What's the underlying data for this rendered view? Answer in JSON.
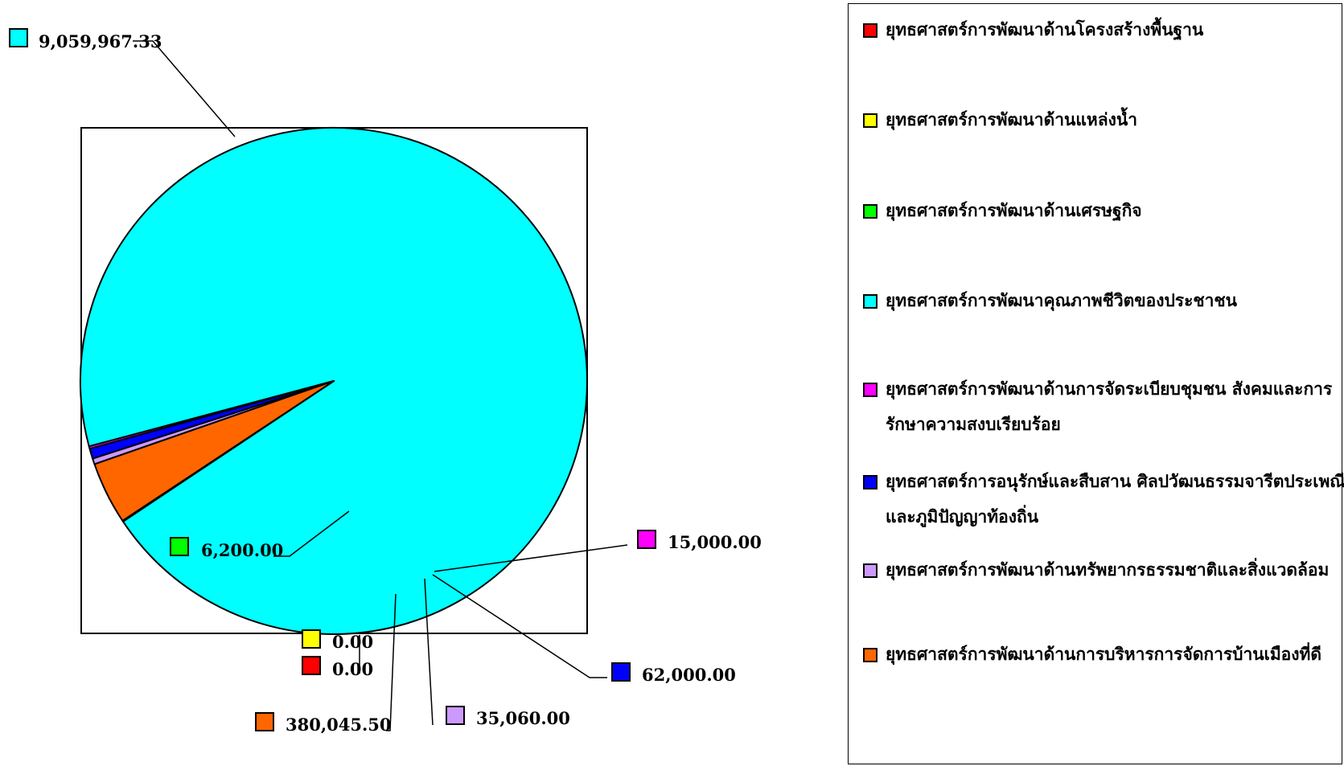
{
  "chart_data": {
    "type": "pie",
    "slices": [
      {
        "label": "ยุทธศาสตร์การพัฒนาด้านโครงสร้างพื้นฐาน",
        "value": 0.0,
        "value_label": "0.00",
        "color": "#ff0000"
      },
      {
        "label": "ยุทธศาสตร์การพัฒนาด้านแหล่งน้ำ",
        "value": 0.0,
        "value_label": "0.00",
        "color": "#ffff00"
      },
      {
        "label": "ยุทธศาสตร์การพัฒนาด้านเศรษฐกิจ",
        "value": 6200.0,
        "value_label": "6,200.00",
        "color": "#00ff00"
      },
      {
        "label": "ยุทธศาสตร์การพัฒนาคุณภาพชีวิตของประชาชน",
        "value": 9059967.33,
        "value_label": "9,059,967.33",
        "color": "#00ffff"
      },
      {
        "label": "ยุทธศาสตร์การพัฒนาด้านการจัดระเบียบชุมชน สังคมและการรักษาความสงบเรียบร้อย",
        "value": 15000.0,
        "value_label": "15,000.00",
        "color": "#ff00ff"
      },
      {
        "label": " ยุทธศาสตร์การอนุรักษ์และสืบสาน ศิลปวัฒนธรรมจารีตประเพณีและภูมิปัญญาท้องถิ่น",
        "value": 62000.0,
        "value_label": "62,000.00",
        "color": "#0000ff"
      },
      {
        "label": "ยุทธศาสตร์การพัฒนาด้านทรัพยากรธรรมชาติและสิ่งแวดล้อม",
        "value": 35060.0,
        "value_label": "35,060.00",
        "color": "#cc99ff"
      },
      {
        "label": "ยุทธศาสตร์การพัฒนาด้านการบริหารการจัดการบ้านเมืองที่ดี",
        "value": 380045.5,
        "value_label": "380,045.50",
        "color": "#ff6600"
      }
    ],
    "legend_position": "right"
  }
}
